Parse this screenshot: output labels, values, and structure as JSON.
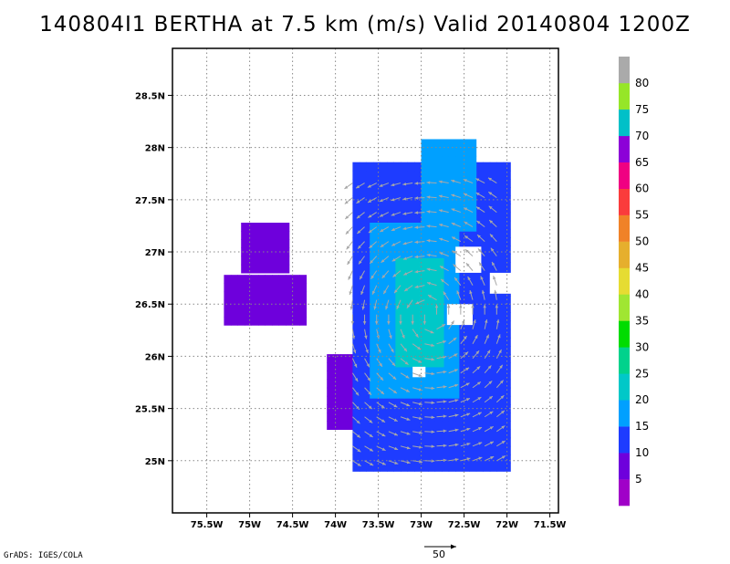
{
  "title": "140804I1 BERTHA at 7.5 km (m/s) Valid 20140804 1200Z",
  "credit": "GrADS: IGES/COLA",
  "reference_vector": {
    "label": "50",
    "speed": 50
  },
  "map": {
    "lon_range": [
      -75.9,
      -71.4
    ],
    "lat_range": [
      24.5,
      28.95
    ],
    "lon_ticks": [
      {
        "v": -75.5,
        "label": "75.5W"
      },
      {
        "v": -75,
        "label": "75W"
      },
      {
        "v": -74.5,
        "label": "74.5W"
      },
      {
        "v": -74,
        "label": "74W"
      },
      {
        "v": -73.5,
        "label": "73.5W"
      },
      {
        "v": -73,
        "label": "73W"
      },
      {
        "v": -72.5,
        "label": "72.5W"
      },
      {
        "v": -72,
        "label": "72W"
      },
      {
        "v": -71.5,
        "label": "71.5W"
      }
    ],
    "lat_ticks": [
      {
        "v": 25,
        "label": "25N"
      },
      {
        "v": 25.5,
        "label": "25.5N"
      },
      {
        "v": 26,
        "label": "26N"
      },
      {
        "v": 26.5,
        "label": "26.5N"
      },
      {
        "v": 27,
        "label": "27N"
      },
      {
        "v": 27.5,
        "label": "27.5N"
      },
      {
        "v": 28,
        "label": "28N"
      },
      {
        "v": 28.5,
        "label": "28.5N"
      }
    ],
    "grid": true
  },
  "legend": {
    "labels": [
      "5",
      "10",
      "15",
      "20",
      "25",
      "30",
      "35",
      "40",
      "45",
      "50",
      "55",
      "60",
      "65",
      "70",
      "75",
      "80"
    ],
    "bins": [
      {
        "color": "#a000c8"
      },
      {
        "color": "#6e00dc"
      },
      {
        "color": "#1e3cff"
      },
      {
        "color": "#00a0ff"
      },
      {
        "color": "#00c8c8"
      },
      {
        "color": "#00d28c"
      },
      {
        "color": "#00dc00"
      },
      {
        "color": "#a0e632"
      },
      {
        "color": "#e6dc32"
      },
      {
        "color": "#e6af2d"
      },
      {
        "color": "#f08228"
      },
      {
        "color": "#fa3c3c"
      },
      {
        "color": "#f00082"
      },
      {
        "color": "#8c00d8"
      },
      {
        "color": "#00c0c8"
      },
      {
        "color": "#96e628"
      },
      {
        "color": "#aaaaaa"
      }
    ]
  },
  "wind_field": {
    "units": "m/s",
    "regions": [
      {
        "name": "west-patch-upper",
        "lon": [
          -75.1,
          -74.6
        ],
        "lat": [
          26.8,
          27.2
        ],
        "speed": 5
      },
      {
        "name": "west-patch-lower",
        "lon": [
          -75.3,
          -74.4
        ],
        "lat": [
          26.3,
          26.7
        ],
        "speed": 5
      },
      {
        "name": "main-purple-west-edge",
        "lon": [
          -74.1,
          -73.7
        ],
        "lat": [
          25.3,
          26.0
        ],
        "speed": 5
      },
      {
        "name": "main-body",
        "lon": [
          -73.8,
          -72.0
        ],
        "lat": [
          24.9,
          27.8
        ],
        "speed": 12
      },
      {
        "name": "inner-band-15",
        "lon": [
          -73.6,
          -72.6
        ],
        "lat": [
          25.6,
          27.2
        ],
        "speed": 16
      },
      {
        "name": "inner-band-20",
        "lon": [
          -73.3,
          -72.8
        ],
        "lat": [
          25.9,
          26.9
        ],
        "speed": 21
      },
      {
        "name": "north-arm-15",
        "lon": [
          -73.0,
          -72.4
        ],
        "lat": [
          27.2,
          28.0
        ],
        "speed": 16
      }
    ]
  }
}
